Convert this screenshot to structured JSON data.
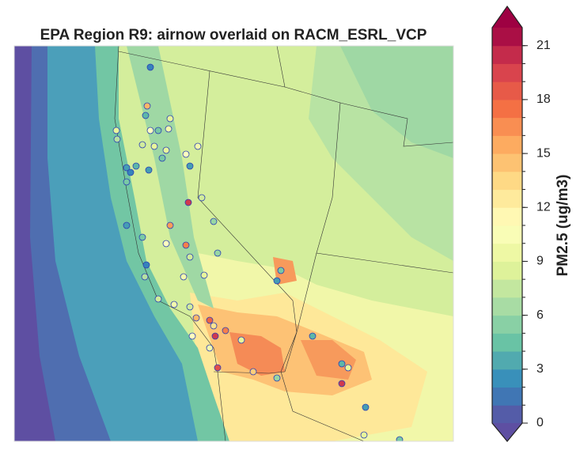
{
  "chart_data": {
    "type": "contour-map",
    "title": "EPA Region R9: airnow overlaid on RACM_ESRL_VCP",
    "colorbar_label": "PM2.5 (ug/m3)",
    "ylim": [
      0,
      22
    ],
    "yticks": [
      0,
      3,
      6,
      9,
      12,
      15,
      18,
      21
    ],
    "colormap": [
      "#5e4fa2",
      "#3288bd",
      "#66c2a5",
      "#abdda4",
      "#e6f598",
      "#ffffbf",
      "#fee08b",
      "#fdae61",
      "#f46d43",
      "#d53e4f",
      "#9e0142"
    ],
    "station_values": [
      2,
      15,
      4,
      11,
      9,
      7,
      5,
      8,
      9,
      10,
      9,
      9,
      3,
      2,
      5,
      4,
      3,
      5,
      11,
      3,
      10,
      20,
      8,
      6,
      3,
      5,
      16,
      17,
      11,
      8,
      6,
      2,
      7,
      10,
      9,
      8,
      10,
      8,
      15,
      18,
      13,
      17,
      11,
      20,
      10,
      9,
      19,
      14,
      6,
      4,
      5,
      3,
      4,
      9,
      20,
      3,
      9,
      5
    ]
  }
}
